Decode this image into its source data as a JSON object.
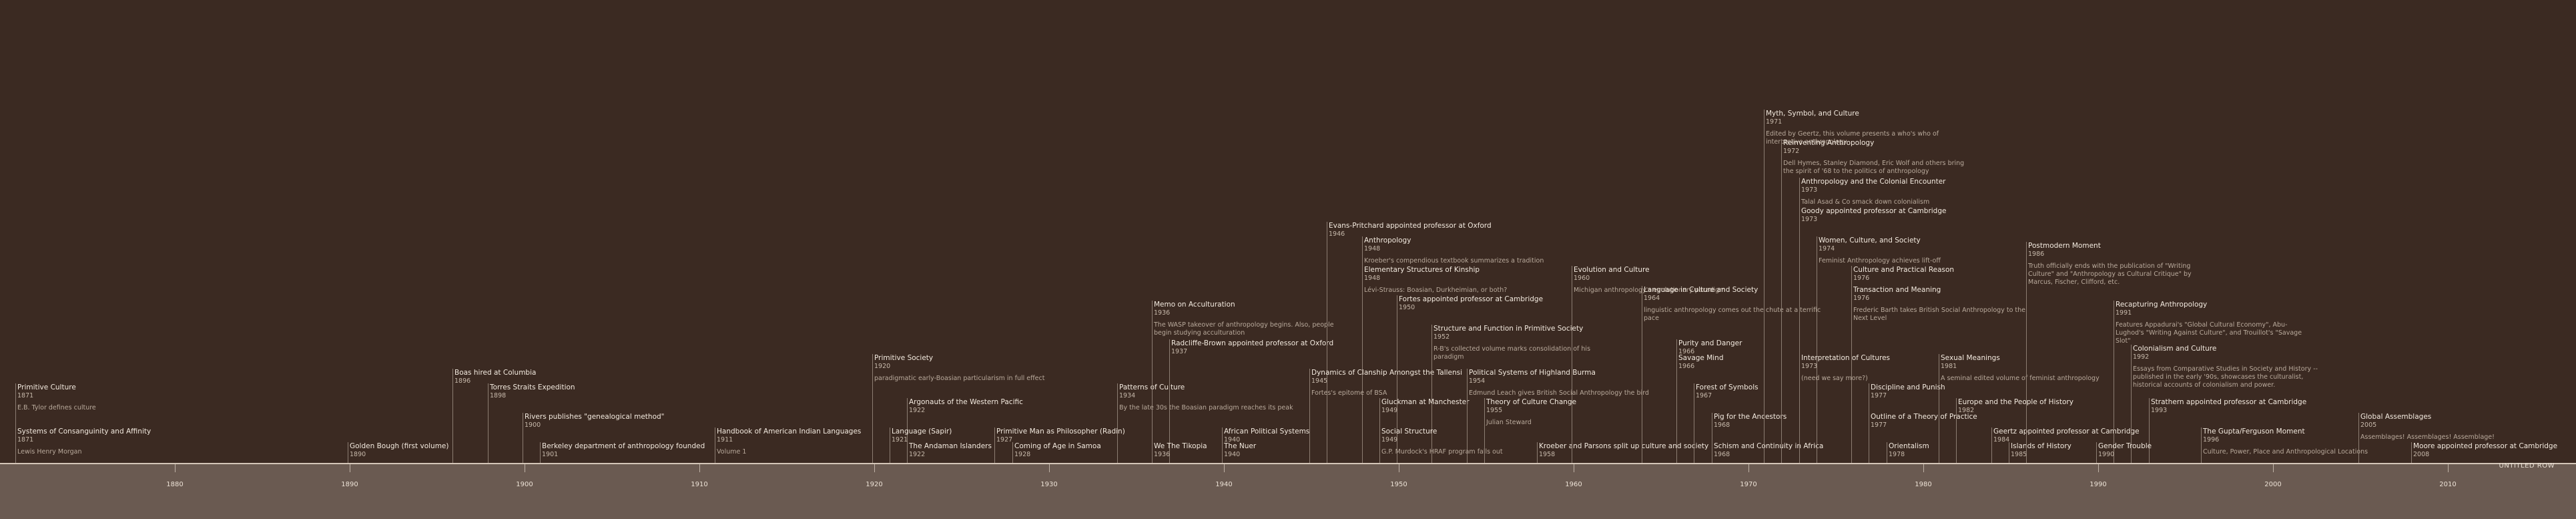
{
  "axis": {
    "row_label": "UNTITLED ROW",
    "ticks": [
      {
        "label": "1880",
        "year": 1880
      },
      {
        "label": "1890",
        "year": 1890
      },
      {
        "label": "1900",
        "year": 1900
      },
      {
        "label": "1910",
        "year": 1910
      },
      {
        "label": "1920",
        "year": 1920
      },
      {
        "label": "1930",
        "year": 1930
      },
      {
        "label": "1940",
        "year": 1940
      },
      {
        "label": "1950",
        "year": 1950
      },
      {
        "label": "1960",
        "year": 1960
      },
      {
        "label": "1970",
        "year": 1970
      },
      {
        "label": "1980",
        "year": 1980
      },
      {
        "label": "1990",
        "year": 1990
      },
      {
        "label": "2000",
        "year": 2000
      },
      {
        "label": "2010",
        "year": 2010
      }
    ]
  },
  "events": [
    {
      "title": "Primitive Culture",
      "year_label": "1871",
      "year": 1871,
      "desc": "E.B. Tylor defines culture",
      "level": 4
    },
    {
      "title": "Systems of Consanguinity and Affinity",
      "year_label": "1871",
      "year": 1871,
      "desc": "Lewis Henry Morgan",
      "level": 1
    },
    {
      "title": "Golden Bough (first volume)",
      "year_label": "1890",
      "year": 1890,
      "desc": "",
      "level": 0
    },
    {
      "title": "Boas hired at Columbia",
      "year_label": "1896",
      "year": 1896,
      "desc": "",
      "level": 5
    },
    {
      "title": "Torres Straits Expedition",
      "year_label": "1898",
      "year": 1898,
      "desc": "",
      "level": 4
    },
    {
      "title": "Rivers publishes \"genealogical method\"",
      "year_label": "1900",
      "year": 1900,
      "desc": "",
      "level": 2
    },
    {
      "title": "Berkeley department of anthropology founded",
      "year_label": "1901",
      "year": 1901,
      "desc": "",
      "level": 0
    },
    {
      "title": "Handbook of American Indian Languages",
      "year_label": "1911",
      "year": 1911,
      "desc": "Volume 1",
      "level": 1
    },
    {
      "title": "Primitive Society",
      "year_label": "1920",
      "year": 1920,
      "desc": "paradigmatic early-Boasian particularism in full effect",
      "level": 6
    },
    {
      "title": "Argonauts of the Western Pacific",
      "year_label": "1922",
      "year": 1922,
      "desc": "",
      "level": 3
    },
    {
      "title": "Language (Sapir)",
      "year_label": "1921",
      "year": 1921,
      "desc": "",
      "level": 1
    },
    {
      "title": "The Andaman Islanders",
      "year_label": "1922",
      "year": 1922,
      "desc": "",
      "level": 0
    },
    {
      "title": "Primitive Man as Philosopher (Radin)",
      "year_label": "1927",
      "year": 1927,
      "desc": "",
      "level": 1
    },
    {
      "title": "Coming of Age in Samoa",
      "year_label": "1928",
      "year": 1928,
      "desc": "",
      "level": 0
    },
    {
      "title": "Patterns of Culture",
      "year_label": "1934",
      "year": 1934,
      "desc": "By the late 30s the Boasian paradigm reaches its peak",
      "level": 4
    },
    {
      "title": "Memo on Acculturation",
      "year_label": "1936",
      "year": 1936,
      "desc": "The WASP takeover of anthropology begins. Also, people begin studying acculturation",
      "level": 9
    },
    {
      "title": "Radcliffe-Brown appointed professor at Oxford",
      "year_label": "1937",
      "year": 1937,
      "desc": "",
      "level": 7
    },
    {
      "title": "We The Tikopia",
      "year_label": "1936",
      "year": 1936,
      "desc": "",
      "level": 0
    },
    {
      "title": "African Political Systems",
      "year_label": "1940",
      "year": 1940,
      "desc": "",
      "level": 1
    },
    {
      "title": "The Nuer",
      "year_label": "1940",
      "year": 1940,
      "desc": "",
      "level": 0
    },
    {
      "title": "Evans-Pritchard appointed professor at Oxford",
      "year_label": "1946",
      "year": 1946,
      "desc": "",
      "level": 15
    },
    {
      "title": "Anthropology",
      "year_label": "1948",
      "year": 1948,
      "desc": "Kroeber's compendious textbook summarizes a tradition",
      "level": 14
    },
    {
      "title": "Elementary Structures of Kinship",
      "year_label": "1948",
      "year": 1948,
      "desc": "Lévi-Strauss: Boasian, Durkheimian, or both?",
      "level": 12
    },
    {
      "title": "Dynamics of Clanship Amongst the Tallensi",
      "year_label": "1945",
      "year": 1945,
      "desc": "Fortes's epitome of BSA",
      "level": 5
    },
    {
      "title": "Fortes appointed professor at Cambridge",
      "year_label": "1950",
      "year": 1950,
      "desc": "",
      "level": 10
    },
    {
      "title": "Structure and Function in Primitive Society",
      "year_label": "1952",
      "year": 1952,
      "desc": "R-B's collected volume marks consolidation of his paradigm",
      "level": 8
    },
    {
      "title": "Gluckman at Manchester",
      "year_label": "1949",
      "year": 1949,
      "desc": "",
      "level": 3
    },
    {
      "title": "Social Structure",
      "year_label": "1949",
      "year": 1949,
      "desc": "G.P. Murdock's HRAF program falls out",
      "level": 1
    },
    {
      "title": "Political Systems of Highland Burma",
      "year_label": "1954",
      "year": 1954,
      "desc": "Edmund Leach gives British Social Anthropology the bird",
      "level": 5
    },
    {
      "title": "Theory of Culture Change",
      "year_label": "1955",
      "year": 1955,
      "desc": "Julian Steward",
      "level": 3
    },
    {
      "title": "Kroeber and Parsons split up culture and society",
      "year_label": "1958",
      "year": 1958,
      "desc": "",
      "level": 0
    },
    {
      "title": "Evolution and Culture",
      "year_label": "1960",
      "year": 1960,
      "desc": "Michigan anthropology's evolutionary paradigm",
      "level": 12
    },
    {
      "title": "Language in Culture and Society",
      "year_label": "1964",
      "year": 1964,
      "desc": "linguistic anthropology comes out the chute at a terrific pace",
      "level": 10
    },
    {
      "title": "Purity and Danger",
      "year_label": "1966",
      "year": 1966,
      "desc": "",
      "level": 7
    },
    {
      "title": "Savage Mind",
      "year_label": "1966",
      "year": 1966,
      "desc": "",
      "level": 6
    },
    {
      "title": "Forest of Symbols",
      "year_label": "1967",
      "year": 1967,
      "desc": "",
      "level": 4
    },
    {
      "title": "Pig for the Ancestors",
      "year_label": "1968",
      "year": 1968,
      "desc": "",
      "level": 2
    },
    {
      "title": "Schism and Continuity in Africa",
      "year_label": "1968",
      "year": 1968,
      "desc": "",
      "level": 0
    },
    {
      "title": "Myth, Symbol, and Culture",
      "year_label": "1971",
      "year": 1971,
      "desc": "Edited by Geertz, this volume presents a who's who of interpretive anthropology",
      "level": 22
    },
    {
      "title": "Reinventing Anthropology",
      "year_label": "1972",
      "year": 1972,
      "desc": "Dell Hymes, Stanley Diamond, Eric Wolf and others bring the spirit of '68 to the politics of anthropology",
      "level": 20
    },
    {
      "title": "Anthropology and the Colonial Encounter",
      "year_label": "1973",
      "year": 1973,
      "desc": "Talal Asad & Co smack down colonialism",
      "level": 18
    },
    {
      "title": "Goody appointed professor at Cambridge",
      "year_label": "1973",
      "year": 1973,
      "desc": "",
      "level": 16
    },
    {
      "title": "Women, Culture, and Society",
      "year_label": "1974",
      "year": 1974,
      "desc": "Feminist Anthropology achieves lift-off",
      "level": 14
    },
    {
      "title": "Culture and Practical Reason",
      "year_label": "1976",
      "year": 1976,
      "desc": "",
      "level": 12
    },
    {
      "title": "Transaction and Meaning",
      "year_label": "1976",
      "year": 1976,
      "desc": "Frederic Barth takes British Social Anthropology to the Next Level",
      "level": 10
    },
    {
      "title": "Interpretation of Cultures",
      "year_label": "1973",
      "year": 1973,
      "desc": "(need we say more?)",
      "level": 6
    },
    {
      "title": "Discipline and Punish",
      "year_label": "1977",
      "year": 1977,
      "desc": "",
      "level": 4
    },
    {
      "title": "Outline of a Theory of Practice",
      "year_label": "1977",
      "year": 1977,
      "desc": "",
      "level": 2
    },
    {
      "title": "Orientalism",
      "year_label": "1978",
      "year": 1978,
      "desc": "",
      "level": 0
    },
    {
      "title": "Sexual Meanings",
      "year_label": "1981",
      "year": 1981,
      "desc": "A seminal edited volume of feminist anthropology",
      "level": 6
    },
    {
      "title": "Europe and the People of History",
      "year_label": "1982",
      "year": 1982,
      "desc": "",
      "level": 3
    },
    {
      "title": "Geertz appointed professor at Cambridge",
      "year_label": "1984",
      "year": 1984,
      "desc": "",
      "level": 1
    },
    {
      "title": "Islands of History",
      "year_label": "1985",
      "year": 1985,
      "desc": "",
      "level": 0
    },
    {
      "title": "Postmodern Moment",
      "year_label": "1986",
      "year": 1986,
      "desc": "Truth officially ends with the publication of \"Writing Culture\" and \"Anthropology as Cultural Critique\" by Marcus, Fischer, Clifford, etc.",
      "level": 13
    },
    {
      "title": "Recapturing Anthropology",
      "year_label": "1991",
      "year": 1991,
      "desc": "Features Appadurai's \"Global Cultural Economy\", Abu-Lughod's \"Writing Against Culture\", and Trouillot's \"Savage Slot\"",
      "level": 9
    },
    {
      "title": "Colonialism and Culture",
      "year_label": "1992",
      "year": 1992,
      "desc": "Essays from Comparative Studies in Society and History -- published in the early '90s, showcases the culturalist, historical accounts of colonialism and power.",
      "level": 6
    },
    {
      "title": "Strathern appointed professor at Cambridge",
      "year_label": "1993",
      "year": 1993,
      "desc": "",
      "level": 3
    },
    {
      "title": "Gender Trouble",
      "year_label": "1990",
      "year": 1990,
      "desc": "",
      "level": 0
    },
    {
      "title": "The Gupta/Ferguson Moment",
      "year_label": "1996",
      "year": 1996,
      "desc": "Culture, Power, Place and Anthropological Locations",
      "level": 1
    },
    {
      "title": "Global Assemblages",
      "year_label": "2005",
      "year": 2005,
      "desc": "Assemblages! Assemblages! Assemblage!",
      "level": 2
    },
    {
      "title": "Moore appointed professor at Cambridge",
      "year_label": "2008",
      "year": 2008,
      "desc": "",
      "level": 0
    }
  ]
}
